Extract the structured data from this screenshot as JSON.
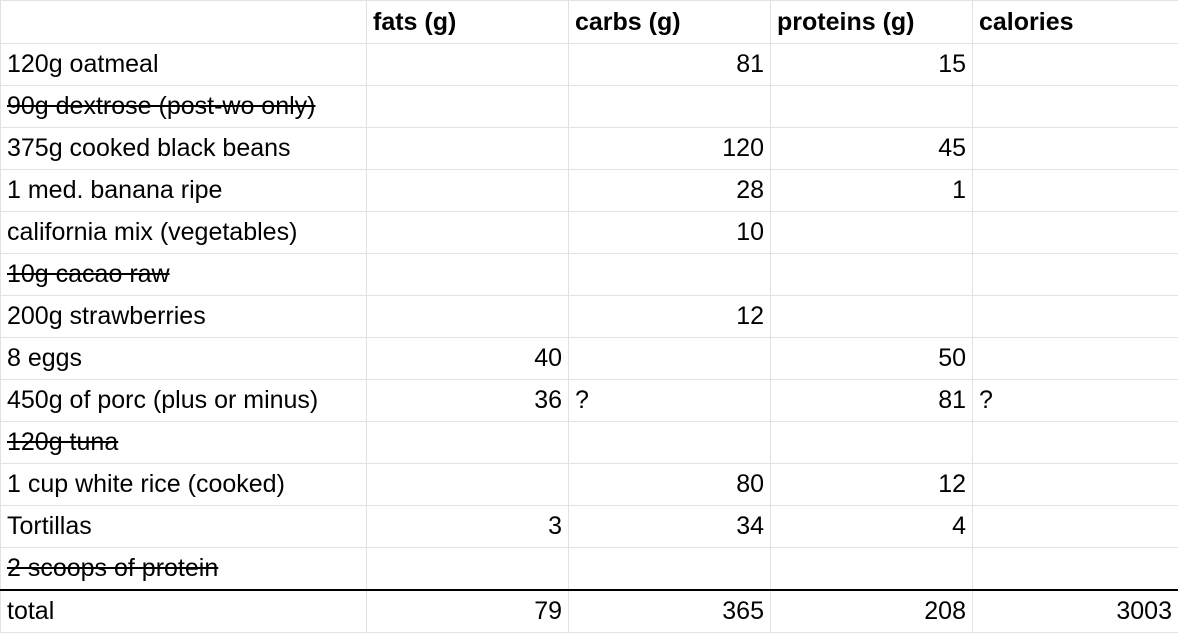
{
  "sheet": {
    "headers": [
      "",
      "fats (g)",
      "carbs (g)",
      "proteins (g)",
      "calories"
    ],
    "rows": [
      {
        "item": "120g oatmeal",
        "fats": "",
        "carbs": "81",
        "proteins": "15",
        "calories": "",
        "struck": false
      },
      {
        "item": "90g dextrose (post-wo only)",
        "fats": "",
        "carbs": "",
        "proteins": "",
        "calories": "",
        "struck": true
      },
      {
        "item": "375g cooked black beans",
        "fats": "",
        "carbs": "120",
        "proteins": "45",
        "calories": "",
        "struck": false
      },
      {
        "item": "1 med. banana ripe",
        "fats": "",
        "carbs": "28",
        "proteins": "1",
        "calories": "",
        "struck": false
      },
      {
        "item": "california mix (vegetables)",
        "fats": "",
        "carbs": "10",
        "proteins": "",
        "calories": "",
        "struck": false
      },
      {
        "item": "10g cacao raw",
        "fats": "",
        "carbs": "",
        "proteins": "",
        "calories": "",
        "struck": true
      },
      {
        "item": "200g strawberries",
        "fats": "",
        "carbs": "12",
        "proteins": "",
        "calories": "",
        "struck": false
      },
      {
        "item": "8 eggs",
        "fats": "40",
        "carbs": "",
        "proteins": "50",
        "calories": "",
        "struck": false
      },
      {
        "item": "450g of porc (plus or minus)",
        "fats": "36",
        "carbs": "?",
        "proteins": "81",
        "calories": "?",
        "struck": false
      },
      {
        "item": "120g tuna",
        "fats": "",
        "carbs": "",
        "proteins": "",
        "calories": "",
        "struck": true
      },
      {
        "item": "1 cup white rice (cooked)",
        "fats": "",
        "carbs": "80",
        "proteins": "12",
        "calories": "",
        "struck": false
      },
      {
        "item": "Tortillas",
        "fats": "3",
        "carbs": "34",
        "proteins": "4",
        "calories": "",
        "struck": false
      },
      {
        "item": "2 scoops of protein",
        "fats": "",
        "carbs": "",
        "proteins": "",
        "calories": "",
        "struck": true
      }
    ],
    "total": {
      "item": "total",
      "fats": "79",
      "carbs": "365",
      "proteins": "208",
      "calories": "3003"
    }
  }
}
